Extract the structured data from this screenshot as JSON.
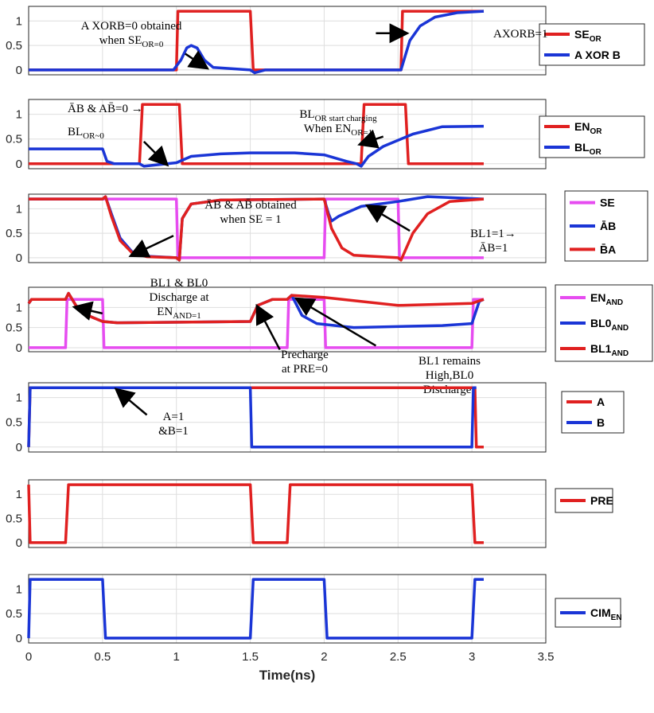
{
  "colors": {
    "red": "#e02020",
    "blue": "#1a35d6",
    "magenta": "#e64cf0"
  },
  "chart_data": [
    {
      "type": "line",
      "xlim": [
        0,
        3.5
      ],
      "ylim": [
        -0.1,
        1.3
      ],
      "yticks": [
        "0",
        "0.5",
        "1"
      ],
      "grid": true,
      "legend_position": "right",
      "series": [
        {
          "name": "SE_OR",
          "color": "red",
          "points": [
            [
              0,
              0
            ],
            [
              1,
              0
            ],
            [
              1.01,
              1.2
            ],
            [
              1.5,
              1.2
            ],
            [
              1.52,
              0
            ],
            [
              2.52,
              0
            ],
            [
              2.53,
              1.2
            ],
            [
              3.08,
              1.2
            ]
          ]
        },
        {
          "name": "A XOR B",
          "color": "blue",
          "points": [
            [
              0,
              0
            ],
            [
              0.98,
              0
            ],
            [
              1.03,
              0.2
            ],
            [
              1.07,
              0.45
            ],
            [
              1.1,
              0.5
            ],
            [
              1.14,
              0.45
            ],
            [
              1.19,
              0.2
            ],
            [
              1.25,
              0.05
            ],
            [
              1.5,
              0
            ],
            [
              1.53,
              -0.06
            ],
            [
              1.6,
              0
            ],
            [
              2.52,
              0
            ],
            [
              2.58,
              0.6
            ],
            [
              2.65,
              0.9
            ],
            [
              2.75,
              1.08
            ],
            [
              2.9,
              1.17
            ],
            [
              3.08,
              1.2
            ]
          ]
        }
      ],
      "annotations": [
        {
          "lines": [
            "A XORB=0 obtained",
            "when SE_OR=0"
          ],
          "arrow_from": [
            1.06,
            0.33
          ],
          "arrow_to": [
            1.2,
            0.05
          ]
        },
        {
          "lines": [
            "AXORB=1"
          ],
          "arrow_from": [
            2.35,
            0.75
          ],
          "arrow_to": [
            2.55,
            0.75
          ]
        }
      ]
    },
    {
      "type": "line",
      "xlim": [
        0,
        3.5
      ],
      "ylim": [
        -0.1,
        1.3
      ],
      "yticks": [
        "0",
        "0.5",
        "1"
      ],
      "grid": true,
      "legend_position": "right",
      "series": [
        {
          "name": "EN_OR",
          "color": "red",
          "points": [
            [
              0,
              0
            ],
            [
              0.75,
              0
            ],
            [
              0.77,
              1.2
            ],
            [
              1.02,
              1.2
            ],
            [
              1.04,
              0
            ],
            [
              2.25,
              0
            ],
            [
              2.27,
              1.2
            ],
            [
              2.55,
              1.2
            ],
            [
              2.57,
              0
            ],
            [
              3.08,
              0
            ]
          ]
        },
        {
          "name": "BL_OR",
          "color": "blue",
          "points": [
            [
              0,
              0.3
            ],
            [
              0.5,
              0.3
            ],
            [
              0.53,
              0.05
            ],
            [
              0.58,
              0
            ],
            [
              0.75,
              0
            ],
            [
              0.78,
              -0.05
            ],
            [
              1,
              0.02
            ],
            [
              1.1,
              0.15
            ],
            [
              1.3,
              0.2
            ],
            [
              1.5,
              0.22
            ],
            [
              1.8,
              0.22
            ],
            [
              2.0,
              0.18
            ],
            [
              2.15,
              0.05
            ],
            [
              2.22,
              0
            ],
            [
              2.25,
              -0.05
            ],
            [
              2.3,
              0.15
            ],
            [
              2.4,
              0.35
            ],
            [
              2.6,
              0.6
            ],
            [
              2.8,
              0.75
            ],
            [
              3.08,
              0.76
            ]
          ]
        }
      ],
      "annotations": [
        {
          "lines": [
            "ĀB & AB̄=0 →"
          ],
          "arrow_from": null,
          "arrow_to": null
        },
        {
          "lines": [
            "BL_OR~0"
          ],
          "arrow_from": [
            0.78,
            0.45
          ],
          "arrow_to": [
            0.93,
            0.0
          ]
        },
        {
          "lines": [
            "BL_OR start charging",
            "When EN_OR=1"
          ],
          "arrow_from": [
            2.4,
            0.55
          ],
          "arrow_to": [
            2.25,
            0.4
          ]
        }
      ]
    },
    {
      "type": "line",
      "xlim": [
        0,
        3.5
      ],
      "ylim": [
        -0.1,
        1.3
      ],
      "yticks": [
        "0",
        "0.5",
        "1"
      ],
      "grid": true,
      "legend_position": "right",
      "series": [
        {
          "name": "SE",
          "color": "magenta",
          "points": [
            [
              0,
              1.2
            ],
            [
              1.0,
              1.2
            ],
            [
              1.01,
              0
            ],
            [
              2.0,
              0
            ],
            [
              2.01,
              1.2
            ],
            [
              2.5,
              1.2
            ],
            [
              2.51,
              0
            ],
            [
              3.08,
              0
            ]
          ]
        },
        {
          "name": "ĀB",
          "color": "blue",
          "points": [
            [
              0,
              1.2
            ],
            [
              0.5,
              1.2
            ],
            [
              0.52,
              1.25
            ],
            [
              0.56,
              0.9
            ],
            [
              0.62,
              0.4
            ],
            [
              0.7,
              0.12
            ],
            [
              0.8,
              0.03
            ],
            [
              1.0,
              0
            ],
            [
              1.02,
              -0.05
            ],
            [
              1.04,
              0.8
            ],
            [
              1.1,
              1.1
            ],
            [
              1.3,
              1.18
            ],
            [
              2.0,
              1.2
            ],
            [
              2.03,
              0.9
            ],
            [
              2.05,
              0.75
            ],
            [
              2.1,
              0.85
            ],
            [
              2.25,
              1.05
            ],
            [
              2.5,
              1.15
            ],
            [
              2.6,
              1.2
            ],
            [
              2.7,
              1.25
            ],
            [
              3.08,
              1.2
            ]
          ]
        },
        {
          "name": "B̄A",
          "color": "red",
          "points": [
            [
              0,
              1.2
            ],
            [
              0.5,
              1.2
            ],
            [
              0.52,
              1.25
            ],
            [
              0.56,
              0.85
            ],
            [
              0.62,
              0.35
            ],
            [
              0.7,
              0.1
            ],
            [
              0.8,
              0.02
            ],
            [
              1.0,
              0
            ],
            [
              1.02,
              -0.05
            ],
            [
              1.04,
              0.8
            ],
            [
              1.1,
              1.1
            ],
            [
              1.3,
              1.18
            ],
            [
              2.0,
              1.2
            ],
            [
              2.05,
              0.6
            ],
            [
              2.12,
              0.2
            ],
            [
              2.2,
              0.05
            ],
            [
              2.5,
              0
            ],
            [
              2.52,
              -0.05
            ],
            [
              2.6,
              0.5
            ],
            [
              2.7,
              0.9
            ],
            [
              2.85,
              1.15
            ],
            [
              3.08,
              1.2
            ]
          ]
        }
      ],
      "annotations": [
        {
          "lines": [
            "ĀB & AB̄ obtained",
            "when SE = 1"
          ],
          "arrow_from": [
            0.98,
            0.45
          ],
          "arrow_to": [
            0.7,
            0.05
          ]
        },
        {
          "lines": [
            "BL1=1→",
            "ĀB=1"
          ],
          "arrow_from": [
            2.58,
            0.55
          ],
          "arrow_to": [
            2.3,
            1.05
          ]
        }
      ]
    },
    {
      "type": "line",
      "xlim": [
        0,
        3.5
      ],
      "ylim": [
        -0.1,
        1.5
      ],
      "yticks": [
        "0",
        "0.5",
        "1"
      ],
      "grid": true,
      "legend_position": "right",
      "series": [
        {
          "name": "EN_AND",
          "color": "magenta",
          "points": [
            [
              0,
              0
            ],
            [
              0.25,
              0
            ],
            [
              0.26,
              1.2
            ],
            [
              0.5,
              1.2
            ],
            [
              0.51,
              0
            ],
            [
              1.75,
              0
            ],
            [
              1.76,
              1.2
            ],
            [
              2.0,
              1.2
            ],
            [
              2.01,
              0
            ],
            [
              3.0,
              0
            ],
            [
              3.01,
              1.2
            ],
            [
              3.08,
              1.2
            ]
          ]
        },
        {
          "name": "BL0_AND",
          "color": "blue",
          "points": [
            [
              0,
              1.1
            ],
            [
              0.02,
              1.2
            ],
            [
              0.25,
              1.2
            ],
            [
              0.27,
              1.35
            ],
            [
              0.32,
              1.05
            ],
            [
              0.4,
              0.8
            ],
            [
              0.5,
              0.65
            ],
            [
              0.6,
              0.62
            ],
            [
              1.5,
              0.65
            ],
            [
              1.55,
              1.05
            ],
            [
              1.65,
              1.2
            ],
            [
              1.75,
              1.2
            ],
            [
              1.78,
              1.3
            ],
            [
              1.85,
              0.8
            ],
            [
              1.95,
              0.6
            ],
            [
              2.2,
              0.5
            ],
            [
              2.8,
              0.55
            ],
            [
              3.0,
              0.6
            ],
            [
              3.05,
              1.15
            ],
            [
              3.08,
              1.2
            ]
          ]
        },
        {
          "name": "BL1_AND",
          "color": "red",
          "points": [
            [
              0,
              1.1
            ],
            [
              0.02,
              1.2
            ],
            [
              0.25,
              1.2
            ],
            [
              0.27,
              1.35
            ],
            [
              0.32,
              1.05
            ],
            [
              0.4,
              0.8
            ],
            [
              0.5,
              0.65
            ],
            [
              0.6,
              0.62
            ],
            [
              1.5,
              0.65
            ],
            [
              1.55,
              1.05
            ],
            [
              1.65,
              1.2
            ],
            [
              1.75,
              1.2
            ],
            [
              1.78,
              1.3
            ],
            [
              2.0,
              1.25
            ],
            [
              2.5,
              1.05
            ],
            [
              3.0,
              1.1
            ],
            [
              3.08,
              1.2
            ]
          ]
        }
      ],
      "annotations": [
        {
          "lines": [
            "BL1 & BL0",
            "Discharge at",
            "EN_AND=1"
          ],
          "arrow_from": [
            0.5,
            0.85
          ],
          "arrow_to": [
            0.32,
            1.0
          ]
        },
        {
          "lines": [
            "Precharge",
            "at PRE=0"
          ],
          "arrow_from": [
            1.7,
            -0.05
          ],
          "arrow_to": [
            1.55,
            1.0
          ]
        },
        {
          "lines": [
            "BL1  remains",
            "High,BL0",
            "Discharges"
          ],
          "arrow_from": [
            2.35,
            0.05
          ],
          "arrow_to": [
            1.82,
            1.2
          ]
        }
      ]
    },
    {
      "type": "line",
      "xlim": [
        0,
        3.5
      ],
      "ylim": [
        -0.1,
        1.3
      ],
      "yticks": [
        "0",
        "0.5",
        "1"
      ],
      "grid": true,
      "legend_position": "right",
      "series": [
        {
          "name": "A",
          "color": "red",
          "points": [
            [
              0,
              0
            ],
            [
              0.01,
              1.2
            ],
            [
              3.02,
              1.2
            ],
            [
              3.03,
              0
            ],
            [
              3.08,
              0
            ]
          ]
        },
        {
          "name": "B",
          "color": "blue",
          "points": [
            [
              0,
              0
            ],
            [
              0.01,
              1.2
            ],
            [
              1.5,
              1.2
            ],
            [
              1.51,
              0
            ],
            [
              3.0,
              0
            ],
            [
              3.01,
              1.2
            ],
            [
              3.03,
              1.2
            ]
          ]
        }
      ],
      "annotations": [
        {
          "lines": [
            "A=1",
            "&B=1"
          ],
          "arrow_from": [
            0.8,
            0.65
          ],
          "arrow_to": [
            0.6,
            1.15
          ]
        }
      ]
    },
    {
      "type": "line",
      "xlim": [
        0,
        3.5
      ],
      "ylim": [
        -0.1,
        1.3
      ],
      "yticks": [
        "0",
        "0.5",
        "1"
      ],
      "grid": true,
      "legend_position": "right",
      "series": [
        {
          "name": "PRE",
          "color": "red",
          "points": [
            [
              0,
              1.2
            ],
            [
              0.01,
              0
            ],
            [
              0.25,
              0
            ],
            [
              0.27,
              1.2
            ],
            [
              1.5,
              1.2
            ],
            [
              1.52,
              0
            ],
            [
              1.75,
              0
            ],
            [
              1.77,
              1.2
            ],
            [
              3.0,
              1.2
            ],
            [
              3.02,
              0
            ],
            [
              3.08,
              0
            ]
          ]
        }
      ],
      "annotations": []
    },
    {
      "type": "line",
      "xlim": [
        0,
        3.5
      ],
      "ylim": [
        -0.1,
        1.3
      ],
      "yticks": [
        "0",
        "0.5",
        "1"
      ],
      "grid": true,
      "legend_position": "right",
      "xticks": [
        "0",
        "0.5",
        "1",
        "1.5",
        "2",
        "2.5",
        "3",
        "3.5"
      ],
      "xlabel": "Time(ns)",
      "series": [
        {
          "name": "CIM_EN",
          "color": "blue",
          "points": [
            [
              0,
              0
            ],
            [
              0.01,
              1.2
            ],
            [
              0.5,
              1.2
            ],
            [
              0.52,
              0
            ],
            [
              1.5,
              0
            ],
            [
              1.52,
              1.2
            ],
            [
              2.0,
              1.2
            ],
            [
              2.02,
              0
            ],
            [
              3.0,
              0
            ],
            [
              3.02,
              1.2
            ],
            [
              3.08,
              1.2
            ]
          ]
        }
      ],
      "annotations": []
    }
  ]
}
